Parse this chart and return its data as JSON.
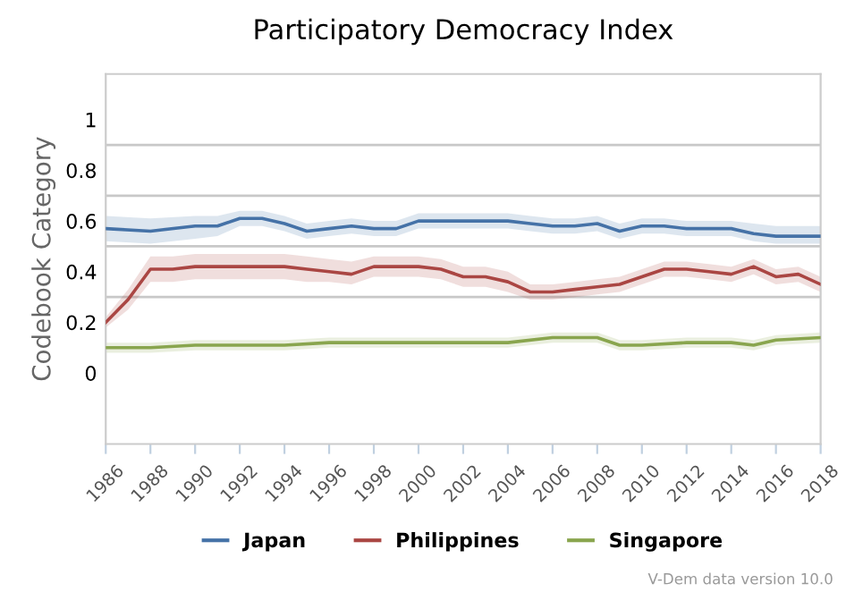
{
  "chart_data": {
    "type": "line",
    "title": "Participatory Democracy Index",
    "ylabel": "Codebook Category",
    "xlim": [
      1986,
      2018
    ],
    "xticks": [
      1986,
      1988,
      1990,
      1992,
      1994,
      1996,
      1998,
      2000,
      2002,
      2004,
      2006,
      2008,
      2010,
      2012,
      2014,
      2016,
      2018
    ],
    "ylim": [
      -0.28,
      1.18
    ],
    "yticks": [
      0,
      0.2,
      0.4,
      0.6,
      0.8,
      1
    ],
    "ref_lines": [
      {
        "axis": "y",
        "value": 0.3,
        "color": "#c8c8c8"
      },
      {
        "axis": "y",
        "value": 0.5,
        "color": "#c8c8c8"
      },
      {
        "axis": "y",
        "value": 0.7,
        "color": "#c8c8c8"
      },
      {
        "axis": "y",
        "value": 0.9,
        "color": "#c8c8c8"
      }
    ],
    "series": [
      {
        "name": "Japan",
        "color": "#4572a7",
        "x": [
          1986,
          1988,
          1990,
          1991,
          1992,
          1993,
          1994,
          1995,
          1996,
          1997,
          1998,
          1999,
          2000,
          2002,
          2004,
          2005,
          2006,
          2007,
          2008,
          2009,
          2010,
          2011,
          2012,
          2013,
          2014,
          2015,
          2016,
          2017,
          2018
        ],
        "values": [
          0.57,
          0.56,
          0.58,
          0.58,
          0.61,
          0.61,
          0.59,
          0.56,
          0.57,
          0.58,
          0.57,
          0.57,
          0.6,
          0.6,
          0.6,
          0.59,
          0.58,
          0.58,
          0.59,
          0.56,
          0.58,
          0.58,
          0.57,
          0.57,
          0.57,
          0.55,
          0.54,
          0.54,
          0.54
        ],
        "lower": [
          0.52,
          0.51,
          0.53,
          0.54,
          0.58,
          0.58,
          0.56,
          0.53,
          0.54,
          0.55,
          0.54,
          0.54,
          0.57,
          0.57,
          0.57,
          0.56,
          0.55,
          0.55,
          0.56,
          0.53,
          0.55,
          0.55,
          0.54,
          0.54,
          0.54,
          0.52,
          0.51,
          0.51,
          0.51
        ],
        "upper": [
          0.62,
          0.61,
          0.62,
          0.62,
          0.64,
          0.64,
          0.62,
          0.59,
          0.6,
          0.61,
          0.6,
          0.6,
          0.63,
          0.63,
          0.63,
          0.62,
          0.61,
          0.61,
          0.62,
          0.59,
          0.61,
          0.61,
          0.6,
          0.6,
          0.6,
          0.59,
          0.58,
          0.58,
          0.58
        ]
      },
      {
        "name": "Philippines",
        "color": "#aa4643",
        "x": [
          1986,
          1987,
          1988,
          1989,
          1990,
          1991,
          1992,
          1993,
          1994,
          1995,
          1996,
          1997,
          1998,
          1999,
          2000,
          2001,
          2002,
          2003,
          2004,
          2005,
          2006,
          2007,
          2008,
          2009,
          2010,
          2011,
          2012,
          2013,
          2014,
          2015,
          2016,
          2017,
          2018
        ],
        "values": [
          0.2,
          0.29,
          0.41,
          0.41,
          0.42,
          0.42,
          0.42,
          0.42,
          0.42,
          0.41,
          0.4,
          0.39,
          0.42,
          0.42,
          0.42,
          0.41,
          0.38,
          0.38,
          0.36,
          0.32,
          0.32,
          0.33,
          0.34,
          0.35,
          0.38,
          0.41,
          0.41,
          0.4,
          0.39,
          0.42,
          0.38,
          0.39,
          0.35
        ],
        "lower": [
          0.18,
          0.25,
          0.36,
          0.36,
          0.37,
          0.37,
          0.37,
          0.37,
          0.37,
          0.36,
          0.36,
          0.35,
          0.38,
          0.38,
          0.38,
          0.37,
          0.34,
          0.34,
          0.32,
          0.29,
          0.29,
          0.3,
          0.31,
          0.32,
          0.35,
          0.38,
          0.38,
          0.37,
          0.36,
          0.39,
          0.35,
          0.36,
          0.32
        ],
        "upper": [
          0.22,
          0.33,
          0.46,
          0.46,
          0.47,
          0.47,
          0.47,
          0.47,
          0.47,
          0.46,
          0.45,
          0.44,
          0.46,
          0.46,
          0.46,
          0.45,
          0.42,
          0.42,
          0.4,
          0.35,
          0.35,
          0.36,
          0.37,
          0.38,
          0.41,
          0.44,
          0.44,
          0.43,
          0.42,
          0.45,
          0.41,
          0.42,
          0.38
        ]
      },
      {
        "name": "Singapore",
        "color": "#89a54e",
        "x": [
          1986,
          1988,
          1990,
          1992,
          1994,
          1996,
          1998,
          2000,
          2002,
          2004,
          2006,
          2008,
          2009,
          2010,
          2012,
          2014,
          2015,
          2016,
          2018
        ],
        "values": [
          0.1,
          0.1,
          0.11,
          0.11,
          0.11,
          0.12,
          0.12,
          0.12,
          0.12,
          0.12,
          0.14,
          0.14,
          0.11,
          0.11,
          0.12,
          0.12,
          0.11,
          0.13,
          0.14
        ],
        "lower": [
          0.08,
          0.08,
          0.09,
          0.09,
          0.09,
          0.1,
          0.1,
          0.1,
          0.1,
          0.1,
          0.12,
          0.12,
          0.09,
          0.09,
          0.1,
          0.1,
          0.09,
          0.11,
          0.12
        ],
        "upper": [
          0.12,
          0.12,
          0.13,
          0.13,
          0.13,
          0.14,
          0.14,
          0.14,
          0.14,
          0.14,
          0.16,
          0.16,
          0.13,
          0.13,
          0.14,
          0.14,
          0.13,
          0.15,
          0.16
        ]
      }
    ],
    "legend": "bottom",
    "grid": false,
    "marker": "none",
    "line_style": "solid",
    "annotations": [
      "V-Dem data version 10.0"
    ]
  }
}
